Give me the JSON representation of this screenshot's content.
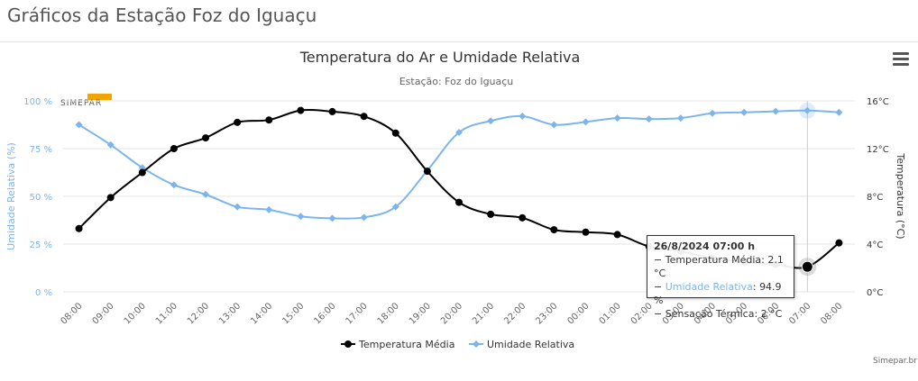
{
  "page": {
    "title": "Gráficos da Estação Foz do Iguaçu"
  },
  "chart_menu": {
    "icon": "hamburger-menu-icon"
  },
  "logo": {
    "text": "SIMEPAR"
  },
  "credit": "Simepar.br",
  "tooltip": {
    "title": "26/8/2024 07:00 h",
    "rows": [
      {
        "label": "Temperatura Média",
        "value": "2.1 °C"
      },
      {
        "label": "Umidade Relativa",
        "value": "94.9 %"
      },
      {
        "label": "Sensação Térmica",
        "value": "2 °C"
      }
    ]
  },
  "colors": {
    "temperature": "#000000",
    "humidity": "#7cb5ec",
    "grid": "#e6e6e6",
    "axis_text": "#666666"
  },
  "chart_data": {
    "type": "line",
    "title": "Temperatura do Ar e Umidade Relativa",
    "subtitle": "Estação: Foz do Iguaçu",
    "categories": [
      "08:00",
      "09:00",
      "10:00",
      "11:00",
      "12:00",
      "13:00",
      "14:00",
      "15:00",
      "16:00",
      "17:00",
      "18:00",
      "19:00",
      "20:00",
      "21:00",
      "22:00",
      "23:00",
      "00:00",
      "01:00",
      "02:00",
      "03:00",
      "04:00",
      "05:00",
      "06:00",
      "07:00",
      "08:00"
    ],
    "left_axis": {
      "label": "Umidade Relativa (%)",
      "ylim": [
        0,
        100
      ],
      "ticks": [
        "0 %",
        "25 %",
        "50 %",
        "75 %",
        "100 %"
      ]
    },
    "right_axis": {
      "label": "Temperatura (°C)",
      "ylim": [
        0,
        16
      ],
      "ticks": [
        "0°C",
        "4°C",
        "8°C",
        "12°C",
        "16°C"
      ]
    },
    "series": [
      {
        "name": "Temperatura Média",
        "axis": "right",
        "marker": "circle",
        "values": [
          5.3,
          7.9,
          10.0,
          12.0,
          12.9,
          14.2,
          14.4,
          15.2,
          15.1,
          14.7,
          13.3,
          10.1,
          7.5,
          6.5,
          6.2,
          5.2,
          5.0,
          4.8,
          3.8,
          3.4,
          2.8,
          2.5,
          2.3,
          2.1,
          4.1
        ]
      },
      {
        "name": "Umidade Relativa",
        "axis": "left",
        "marker": "diamond",
        "values": [
          87.5,
          77.0,
          65.0,
          56.0,
          51.0,
          44.5,
          43.0,
          39.5,
          38.5,
          39.0,
          44.5,
          63.5,
          83.5,
          89.5,
          92.0,
          87.5,
          89.0,
          91.0,
          90.5,
          91.0,
          93.5,
          94.0,
          94.5,
          94.9,
          94.0
        ]
      }
    ],
    "highlight_index": 23,
    "legend_position": "bottom-center"
  }
}
